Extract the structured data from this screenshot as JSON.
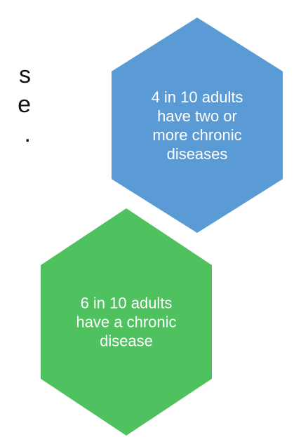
{
  "background_text": {
    "lines": [
      "s",
      "e",
      "."
    ]
  },
  "hexagons": {
    "blue": {
      "color": "#5b9bd5",
      "lines": [
        "4 in 10 adults",
        "have two or",
        "more chronic",
        "diseases"
      ]
    },
    "green": {
      "color": "#4fc25f",
      "lines": [
        "6 in 10 adults",
        "have a chronic",
        "disease"
      ]
    }
  }
}
